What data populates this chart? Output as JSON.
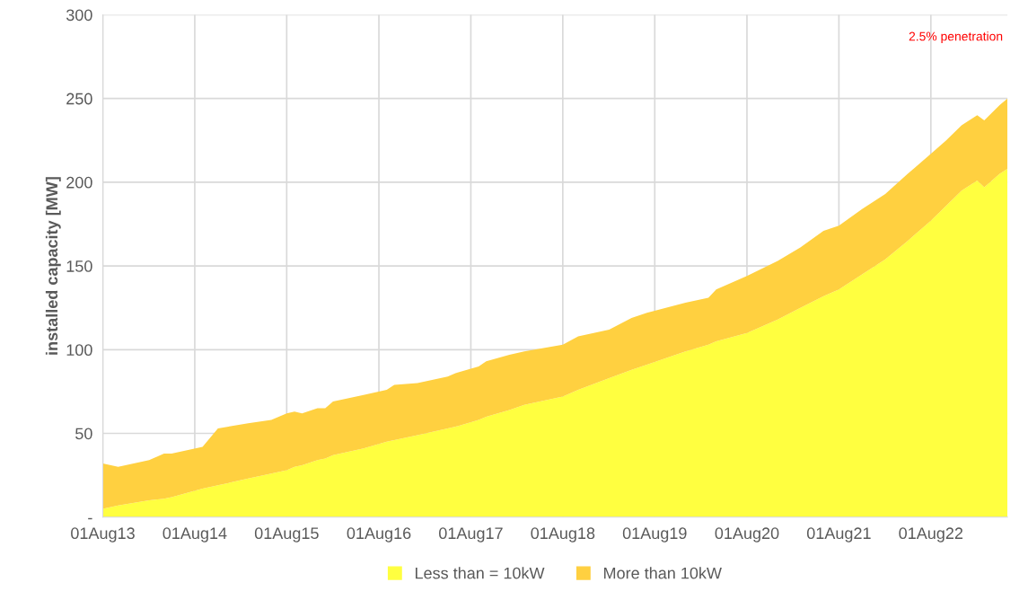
{
  "chart_data": {
    "type": "area",
    "stacked": true,
    "ylabel": "installed capacity [MW]",
    "annotations": [
      "2.5% penetration"
    ],
    "x": [
      "2013-08",
      "2013-10",
      "2014-02",
      "2014-04",
      "2014-05",
      "2014-09",
      "2014-11",
      "2015-03",
      "2015-06",
      "2015-08",
      "2015-09",
      "2015-10",
      "2015-12",
      "2016-01",
      "2016-02",
      "2016-06",
      "2016-09",
      "2016-10",
      "2017-01",
      "2017-05",
      "2017-06",
      "2017-09",
      "2017-10",
      "2018-01",
      "2018-03",
      "2018-08",
      "2018-10",
      "2019-02",
      "2019-05",
      "2019-07",
      "2019-12",
      "2020-03",
      "2020-04",
      "2020-08",
      "2020-12",
      "2021-03",
      "2021-06",
      "2021-08",
      "2021-11",
      "2022-02",
      "2022-05",
      "2022-08",
      "2022-10",
      "2022-12",
      "2023-02",
      "2023-03",
      "2023-05",
      "2023-06"
    ],
    "series": [
      {
        "name": "Less than = 10kW",
        "color": "#ffff40",
        "values": [
          5,
          7,
          10,
          11,
          12,
          17,
          19,
          23,
          26,
          28,
          30,
          31,
          34,
          35,
          37,
          41,
          45,
          46,
          49,
          53,
          54,
          58,
          60,
          64,
          67,
          72,
          76,
          83,
          88,
          91,
          99,
          103,
          105,
          110,
          118,
          125,
          132,
          136,
          145,
          154,
          165,
          177,
          186,
          195,
          201,
          197,
          205,
          208
        ]
      },
      {
        "name": "More than 10kW",
        "color": "#ffd040",
        "values": [
          27,
          23,
          24,
          27,
          26,
          25,
          34,
          33,
          32,
          34,
          33,
          31,
          31,
          30,
          32,
          32,
          31,
          33,
          31,
          31,
          32,
          32,
          33,
          33,
          32,
          31,
          32,
          29,
          31,
          31,
          29,
          28,
          31,
          34,
          35,
          36,
          39,
          38,
          39,
          39,
          40,
          40,
          39,
          39,
          39,
          40,
          41,
          42
        ]
      }
    ],
    "xlim": [
      "2013-08",
      "2023-06"
    ],
    "xticks": [
      {
        "value": "2013-08-01",
        "label": "01Aug13"
      },
      {
        "value": "2014-08-01",
        "label": "01Aug14"
      },
      {
        "value": "2015-08-01",
        "label": "01Aug15"
      },
      {
        "value": "2016-08-01",
        "label": "01Aug16"
      },
      {
        "value": "2017-08-01",
        "label": "01Aug17"
      },
      {
        "value": "2018-08-01",
        "label": "01Aug18"
      },
      {
        "value": "2019-08-01",
        "label": "01Aug19"
      },
      {
        "value": "2020-08-01",
        "label": "01Aug20"
      },
      {
        "value": "2021-08-01",
        "label": "01Aug21"
      },
      {
        "value": "2022-08-01",
        "label": "01Aug22"
      }
    ],
    "ylim": [
      0,
      300
    ],
    "yticks": [
      {
        "value": 0,
        "label": "-"
      },
      50,
      100,
      150,
      200,
      250,
      300
    ],
    "grid": true,
    "legend": "bottom"
  }
}
